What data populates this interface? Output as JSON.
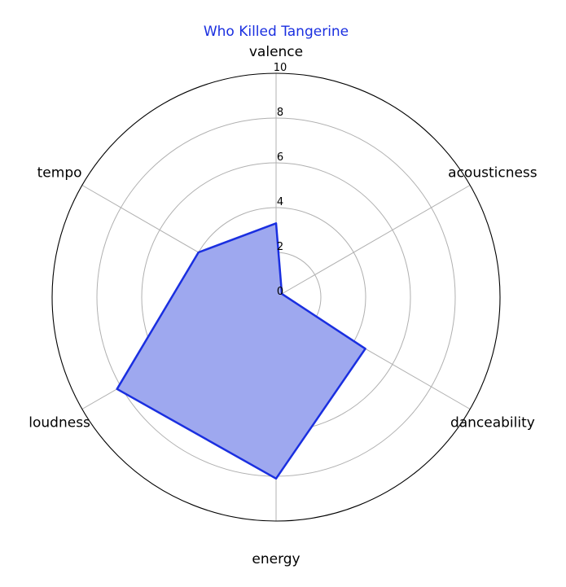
{
  "chart_data": {
    "type": "radar",
    "title": "Who Killed Tangerine",
    "axes": [
      "valence",
      "acousticness",
      "danceability",
      "energy",
      "loudness",
      "tempo"
    ],
    "rlim": [
      0,
      10
    ],
    "rticks": [
      0,
      2,
      4,
      6,
      8,
      10
    ],
    "series": [
      {
        "values": [
          3.3,
          0.3,
          4.6,
          8.1,
          8.2,
          4.0
        ]
      }
    ],
    "colors": {
      "line": "#1a2fe0",
      "fill": "#9ea8ef",
      "title": "#1a2fe0"
    },
    "grid": true
  }
}
